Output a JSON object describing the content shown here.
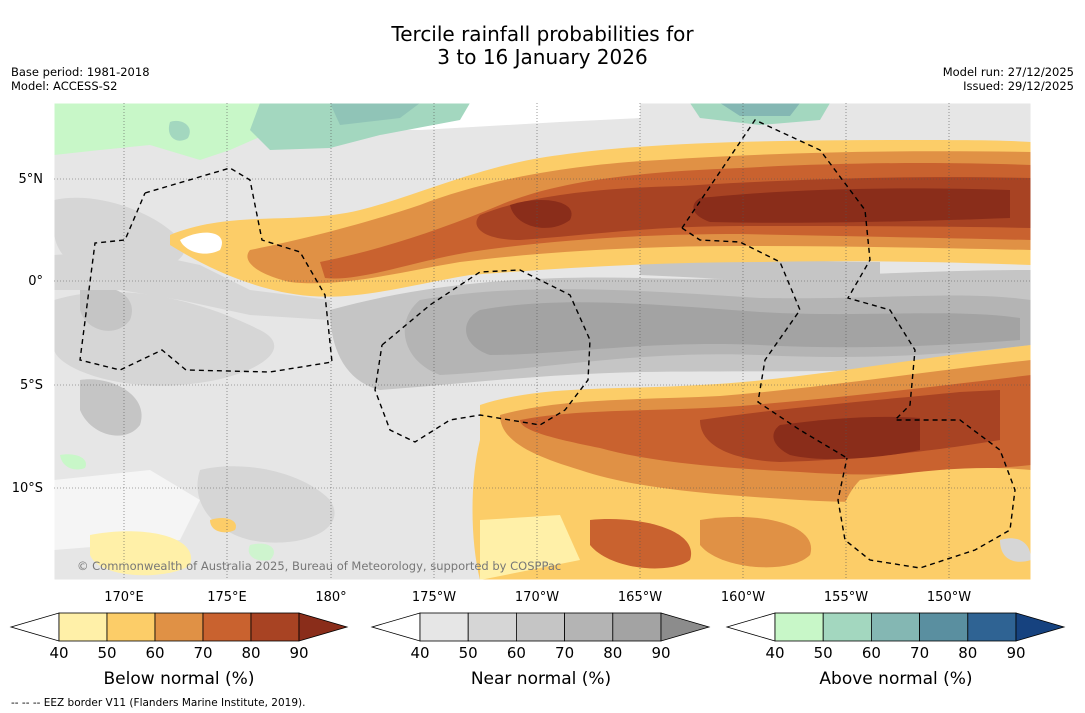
{
  "title": {
    "line1": "Tercile rainfall probabilities for",
    "line2": "3 to 16 January 2026"
  },
  "meta": {
    "base_period": "Base period: 1981-2018",
    "model": "Model: ACCESS-S2",
    "model_run": "Model run: 27/12/2025",
    "issued": "Issued: 29/12/2025"
  },
  "map": {
    "lat_labels": [
      "5°N",
      "0°",
      "5°S",
      "10°S"
    ],
    "lon_labels": [
      "170°E",
      "175°E",
      "180°",
      "175°W",
      "170°W",
      "165°W",
      "160°W",
      "155°W",
      "150°W"
    ],
    "copyright": "© Commonwealth of Australia 2025, Bureau of Meteorology, supported by COSPPac"
  },
  "legend": {
    "below": {
      "label": "Below normal (%)",
      "ticks": [
        "40",
        "50",
        "60",
        "70",
        "80",
        "90"
      ],
      "colors": [
        "#ffffff",
        "#fff0a8",
        "#fccd68",
        "#e09145",
        "#c9622f",
        "#a84323",
        "#8a2d1a"
      ]
    },
    "near": {
      "label": "Near normal (%)",
      "ticks": [
        "40",
        "50",
        "60",
        "70",
        "80",
        "90"
      ],
      "colors": [
        "#ffffff",
        "#e6e6e6",
        "#d6d6d6",
        "#c5c5c5",
        "#b4b4b4",
        "#a3a3a3",
        "#8c8c8c"
      ]
    },
    "above": {
      "label": "Above normal (%)",
      "ticks": [
        "40",
        "50",
        "60",
        "70",
        "80",
        "90"
      ],
      "colors": [
        "#ffffff",
        "#c8f7c8",
        "#a3d7bf",
        "#84b7b3",
        "#5a8fa0",
        "#2f6393",
        "#16427f"
      ]
    }
  },
  "footnote": "--  --  -- EEZ border V11 (Flanders Marine Institute, 2019)."
}
